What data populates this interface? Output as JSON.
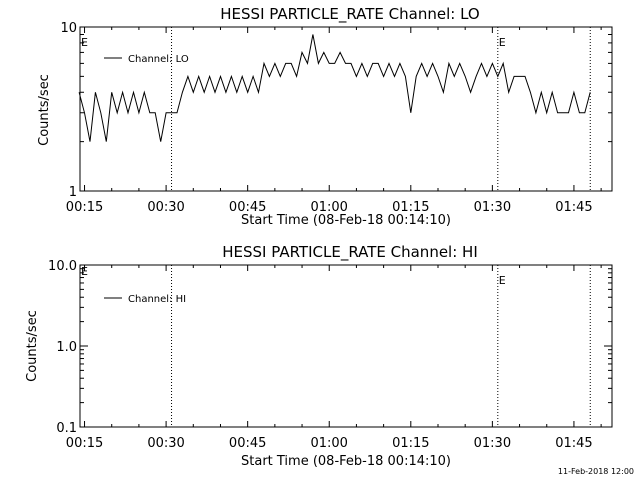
{
  "footer": {
    "timestamp": "11-Feb-2018 12:00"
  },
  "chart_data": [
    {
      "type": "line",
      "title": "HESSI PARTICLE_RATE Channel: LO",
      "xlabel": "Start Time (08-Feb-18 00:14:10)",
      "ylabel": "Counts/sec",
      "yscale": "log",
      "ylim": [
        1,
        10
      ],
      "xlim": [
        "00:14:10",
        "01:52:00"
      ],
      "xticks": [
        "00:15",
        "00:30",
        "00:45",
        "01:00",
        "01:15",
        "01:30",
        "01:45"
      ],
      "yticks": [
        "1",
        "10"
      ],
      "series": [
        {
          "name": "Channel: LO",
          "x": [
            "00:14",
            "00:15",
            "00:16",
            "00:17",
            "00:18",
            "00:19",
            "00:20",
            "00:21",
            "00:22",
            "00:23",
            "00:24",
            "00:25",
            "00:26",
            "00:27",
            "00:28",
            "00:29",
            "00:30",
            "00:31",
            "00:32",
            "00:33",
            "00:34",
            "00:35",
            "00:36",
            "00:37",
            "00:38",
            "00:39",
            "00:40",
            "00:41",
            "00:42",
            "00:43",
            "00:44",
            "00:45",
            "00:46",
            "00:47",
            "00:48",
            "00:49",
            "00:50",
            "00:51",
            "00:52",
            "00:53",
            "00:54",
            "00:55",
            "00:56",
            "00:57",
            "00:58",
            "00:59",
            "01:00",
            "01:01",
            "01:02",
            "01:03",
            "01:04",
            "01:05",
            "01:06",
            "01:07",
            "01:08",
            "01:09",
            "01:10",
            "01:11",
            "01:12",
            "01:13",
            "01:14",
            "01:15",
            "01:16",
            "01:17",
            "01:18",
            "01:19",
            "01:20",
            "01:21",
            "01:22",
            "01:23",
            "01:24",
            "01:25",
            "01:26",
            "01:27",
            "01:28",
            "01:29",
            "01:30",
            "01:31",
            "01:32",
            "01:33",
            "01:34",
            "01:35",
            "01:36",
            "01:37",
            "01:38",
            "01:39",
            "01:40",
            "01:41",
            "01:42",
            "01:43",
            "01:44",
            "01:45",
            "01:46",
            "01:47",
            "01:48"
          ],
          "values": [
            4,
            3,
            2,
            4,
            3,
            2,
            4,
            3,
            4,
            3,
            4,
            3,
            4,
            3,
            3,
            2,
            3,
            3,
            3,
            4,
            5,
            4,
            5,
            4,
            5,
            4,
            5,
            4,
            5,
            4,
            5,
            4,
            5,
            4,
            6,
            5,
            6,
            5,
            6,
            6,
            5,
            7,
            6,
            9,
            6,
            7,
            6,
            6,
            7,
            6,
            6,
            5,
            6,
            5,
            6,
            6,
            5,
            6,
            5,
            6,
            5,
            3,
            5,
            6,
            5,
            6,
            5,
            4,
            6,
            5,
            6,
            5,
            4,
            5,
            6,
            5,
            6,
            5,
            6,
            4,
            5,
            5,
            5,
            4,
            3,
            4,
            3,
            4,
            3,
            3,
            3,
            4,
            3,
            3,
            4
          ]
        }
      ],
      "annotations": [
        {
          "time": "00:31",
          "label": ""
        },
        {
          "time": "01:31",
          "label": "E"
        },
        {
          "time": "01:48",
          "label": ""
        }
      ],
      "edge_label": "E"
    },
    {
      "type": "line",
      "title": "HESSI PARTICLE_RATE Channel: HI",
      "xlabel": "Start Time (08-Feb-18 00:14:10)",
      "ylabel": "Counts/sec",
      "yscale": "log",
      "ylim": [
        0.1,
        10.0
      ],
      "xlim": [
        "00:14:10",
        "01:52:00"
      ],
      "xticks": [
        "00:15",
        "00:30",
        "00:45",
        "01:00",
        "01:15",
        "01:30",
        "01:45"
      ],
      "yticks": [
        "0.1",
        "1.0",
        "10.0"
      ],
      "series": [
        {
          "name": "Channel: HI",
          "x": [],
          "values": []
        }
      ],
      "annotations": [
        {
          "time": "00:31",
          "label": ""
        },
        {
          "time": "01:31",
          "label": "E"
        },
        {
          "time": "01:48",
          "label": ""
        }
      ],
      "edge_label": "E"
    }
  ]
}
